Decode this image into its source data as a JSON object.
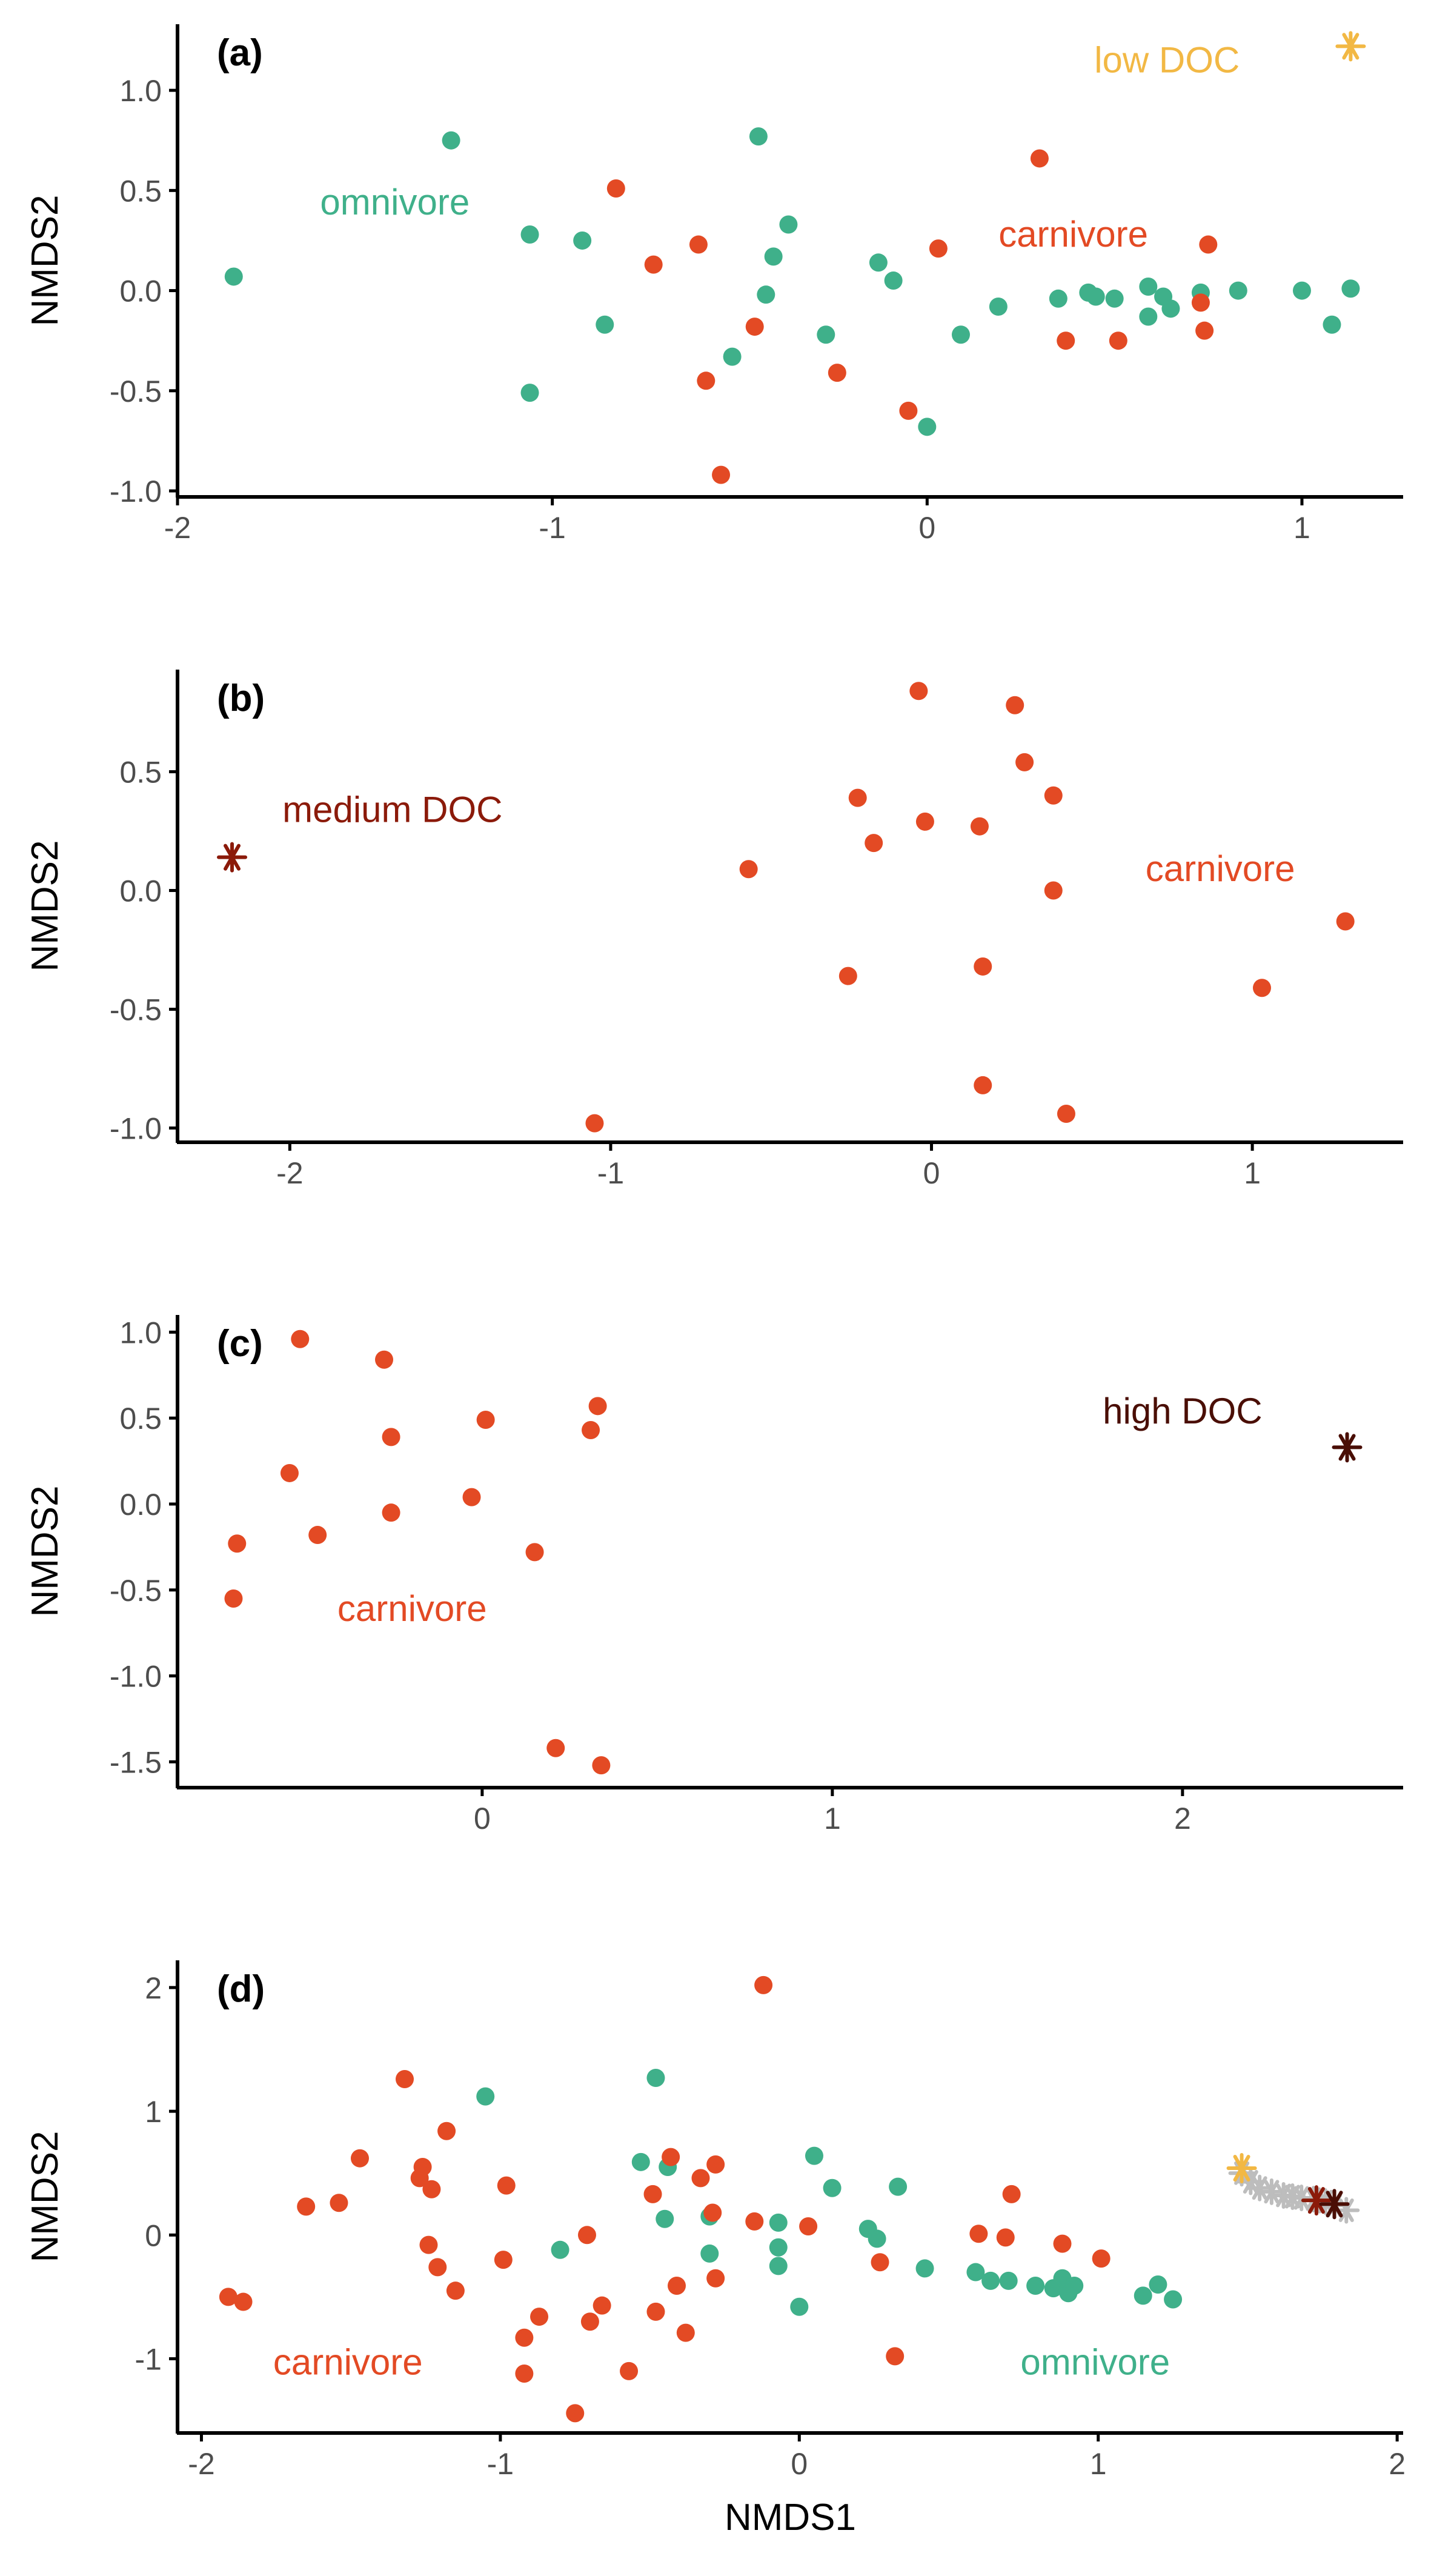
{
  "colors": {
    "carnivore": "#E34A24",
    "omnivore": "#3FB08A",
    "low_doc": "#F2B844",
    "medium_doc": "#8B1A0A",
    "high_doc": "#4A0E05",
    "trail": "#BDBDBD",
    "axis": "#000000",
    "tick_label": "#4d4d4d"
  },
  "chart_data": [
    {
      "type": "scatter",
      "panel_label": "(a)",
      "xlabel": "",
      "ylabel": "NMDS2",
      "xlim": [
        -2.0,
        1.27
      ],
      "ylim": [
        -1.03,
        1.33
      ],
      "xticks": [
        -2,
        -1,
        0,
        1
      ],
      "xtick_labels": [
        "-2",
        "-1",
        "0",
        "1"
      ],
      "yticks": [
        -1.0,
        -0.5,
        0.0,
        0.5,
        1.0
      ],
      "ytick_labels": [
        "-1.0",
        "-0.5",
        "0.0",
        "0.5",
        "1.0"
      ],
      "grid": false,
      "annotations": [
        {
          "text": "omnivore",
          "x": -1.42,
          "y": 0.44,
          "color": "omnivore"
        },
        {
          "text": "carnivore",
          "x": 0.39,
          "y": 0.28,
          "color": "carnivore"
        },
        {
          "text": "low DOC",
          "x": 0.64,
          "y": 1.15,
          "color": "low_doc"
        }
      ],
      "series": [
        {
          "group": "omnivore",
          "marker": "circle",
          "x": [
            -1.85,
            -1.27,
            -1.06,
            -0.92,
            -0.86,
            -1.06,
            -0.45,
            -0.37,
            -0.41,
            -0.43,
            -0.52,
            -0.27,
            -0.13,
            -0.09,
            0.0,
            0.09,
            0.19,
            0.35,
            0.43,
            0.45,
            0.5,
            0.59,
            0.63,
            0.65,
            0.59,
            0.73,
            0.83,
            1.0,
            1.13,
            1.08
          ],
          "y": [
            0.07,
            0.75,
            0.28,
            0.25,
            -0.17,
            -0.51,
            0.77,
            0.33,
            0.17,
            -0.02,
            -0.33,
            -0.22,
            0.14,
            0.05,
            -0.68,
            -0.22,
            -0.08,
            -0.04,
            -0.01,
            -0.03,
            -0.04,
            0.02,
            -0.03,
            -0.09,
            -0.13,
            -0.01,
            0.0,
            0.0,
            0.01,
            -0.17
          ]
        },
        {
          "group": "carnivore",
          "marker": "circle",
          "x": [
            -0.83,
            -0.73,
            -0.61,
            -0.59,
            -0.46,
            -0.55,
            -0.24,
            -0.05,
            0.03,
            0.3,
            0.37,
            0.51,
            0.75,
            0.73,
            0.74
          ],
          "y": [
            0.51,
            0.13,
            0.23,
            -0.45,
            -0.18,
            -0.92,
            -0.41,
            -0.6,
            0.21,
            0.66,
            -0.25,
            -0.25,
            0.23,
            -0.06,
            -0.2
          ]
        },
        {
          "group": "low_doc",
          "marker": "asterisk",
          "x": [
            1.13
          ],
          "y": [
            1.22
          ]
        }
      ]
    },
    {
      "type": "scatter",
      "panel_label": "(b)",
      "xlabel": "",
      "ylabel": "NMDS2",
      "xlim": [
        -2.35,
        1.47
      ],
      "ylim": [
        -1.06,
        0.93
      ],
      "xticks": [
        -2,
        -1,
        0,
        1
      ],
      "xtick_labels": [
        "-2",
        "-1",
        "0",
        "1"
      ],
      "yticks": [
        -1.0,
        -0.5,
        0.0,
        0.5
      ],
      "ytick_labels": [
        "-1.0",
        "-0.5",
        "0.0",
        "0.5"
      ],
      "grid": false,
      "annotations": [
        {
          "text": "medium DOC",
          "x": -1.68,
          "y": 0.34,
          "color": "medium_doc"
        },
        {
          "text": "carnivore",
          "x": 0.9,
          "y": 0.09,
          "color": "carnivore"
        }
      ],
      "series": [
        {
          "group": "carnivore",
          "marker": "circle",
          "x": [
            -1.05,
            -0.57,
            -0.23,
            -0.18,
            -0.04,
            -0.02,
            0.15,
            0.26,
            0.29,
            0.38,
            0.38,
            0.16,
            -0.26,
            0.16,
            0.42,
            1.03,
            1.29
          ],
          "y": [
            -0.98,
            0.09,
            0.39,
            0.2,
            0.84,
            0.29,
            0.27,
            0.78,
            0.54,
            0.4,
            0.0,
            -0.32,
            -0.36,
            -0.82,
            -0.94,
            -0.41,
            -0.13
          ]
        },
        {
          "group": "medium_doc",
          "marker": "asterisk",
          "x": [
            -2.18
          ],
          "y": [
            0.14
          ]
        }
      ]
    },
    {
      "type": "scatter",
      "panel_label": "(c)",
      "xlabel": "",
      "ylabel": "NMDS2",
      "xlim": [
        -0.87,
        2.63
      ],
      "ylim": [
        -1.65,
        1.1
      ],
      "xticks": [
        0,
        1,
        2
      ],
      "xtick_labels": [
        "0",
        "1",
        "2"
      ],
      "yticks": [
        -1.5,
        -1.0,
        -0.5,
        0.0,
        0.5,
        1.0
      ],
      "ytick_labels": [
        "-1.5",
        "-1.0",
        "-0.5",
        "0.0",
        "0.5",
        "1.0"
      ],
      "grid": false,
      "annotations": [
        {
          "text": "carnivore",
          "x": -0.2,
          "y": -0.61,
          "color": "carnivore"
        },
        {
          "text": "high DOC",
          "x": 2.0,
          "y": 0.54,
          "color": "high_doc"
        }
      ],
      "series": [
        {
          "group": "carnivore",
          "marker": "circle",
          "x": [
            -0.52,
            -0.28,
            -0.55,
            -0.26,
            -0.47,
            -0.7,
            -0.71,
            -0.26,
            0.01,
            -0.03,
            0.15,
            0.31,
            0.33,
            0.21,
            0.34
          ],
          "y": [
            0.96,
            0.84,
            0.18,
            0.39,
            -0.18,
            -0.23,
            -0.55,
            -0.05,
            0.49,
            0.04,
            -0.28,
            0.43,
            0.57,
            -1.42,
            -1.52
          ]
        },
        {
          "group": "high_doc",
          "marker": "asterisk",
          "x": [
            2.47
          ],
          "y": [
            0.33
          ]
        }
      ]
    },
    {
      "type": "scatter",
      "panel_label": "(d)",
      "xlabel": "NMDS1",
      "ylabel": "NMDS2",
      "xlim": [
        -2.08,
        2.02
      ],
      "ylim": [
        -1.6,
        2.22
      ],
      "xticks": [
        -2,
        -1,
        0,
        1,
        2
      ],
      "xtick_labels": [
        "-2",
        "-1",
        "0",
        "1",
        "2"
      ],
      "yticks": [
        -1,
        0,
        1,
        2
      ],
      "ytick_labels": [
        "-1",
        "0",
        "1",
        "2"
      ],
      "grid": false,
      "annotations": [
        {
          "text": "carnivore",
          "x": -1.51,
          "y": -1.03,
          "color": "carnivore"
        },
        {
          "text": "omnivore",
          "x": 0.99,
          "y": -1.03,
          "color": "omnivore"
        }
      ],
      "series": [
        {
          "group": "omnivore",
          "marker": "circle",
          "x": [
            -1.05,
            -0.8,
            -0.53,
            -0.48,
            -0.44,
            -0.45,
            -0.3,
            -0.3,
            -0.07,
            -0.07,
            -0.07,
            -0.0,
            0.05,
            0.11,
            0.23,
            0.26,
            0.33,
            0.42,
            0.59,
            0.64,
            0.7,
            0.79,
            0.85,
            0.88,
            0.9,
            0.92,
            1.15,
            1.2,
            1.25
          ],
          "y": [
            1.12,
            -0.12,
            0.59,
            1.27,
            0.55,
            0.13,
            0.15,
            -0.15,
            0.1,
            -0.1,
            -0.25,
            -0.58,
            0.64,
            0.38,
            0.05,
            -0.03,
            0.39,
            -0.27,
            -0.3,
            -0.37,
            -0.37,
            -0.41,
            -0.43,
            -0.35,
            -0.47,
            -0.41,
            -0.49,
            -0.4,
            -0.52
          ]
        },
        {
          "group": "carnivore",
          "marker": "circle",
          "x": [
            -1.91,
            -1.86,
            -1.65,
            -1.54,
            -1.47,
            -1.32,
            -1.27,
            -1.26,
            -1.23,
            -1.24,
            -1.21,
            -1.18,
            -1.15,
            -0.98,
            -0.99,
            -0.92,
            -0.92,
            -0.87,
            -0.75,
            -0.71,
            -0.7,
            -0.66,
            -0.57,
            -0.49,
            -0.48,
            -0.43,
            -0.41,
            -0.38,
            -0.33,
            -0.29,
            -0.28,
            -0.28,
            -0.15,
            -0.12,
            0.03,
            0.27,
            0.32,
            0.6,
            0.69,
            0.71,
            0.88,
            1.01
          ],
          "y": [
            -0.5,
            -0.54,
            0.23,
            0.26,
            0.62,
            1.26,
            0.46,
            0.55,
            0.37,
            -0.08,
            -0.26,
            0.84,
            -0.45,
            0.4,
            -0.2,
            -0.83,
            -1.12,
            -0.66,
            -1.44,
            0.0,
            -0.7,
            -0.57,
            -1.1,
            0.33,
            -0.62,
            0.63,
            -0.41,
            -0.79,
            0.46,
            0.18,
            -0.35,
            0.57,
            0.11,
            2.02,
            0.07,
            -0.22,
            -0.98,
            0.01,
            -0.02,
            0.33,
            -0.07,
            -0.19
          ]
        },
        {
          "group": "trail",
          "marker": "asterisk",
          "x": [
            1.48,
            1.51,
            1.54,
            1.58,
            1.62,
            1.65,
            1.68,
            1.72,
            1.76,
            1.79,
            1.83
          ],
          "y": [
            0.5,
            0.43,
            0.38,
            0.35,
            0.32,
            0.31,
            0.3,
            0.29,
            0.27,
            0.24,
            0.2
          ]
        },
        {
          "group": "low_doc",
          "marker": "asterisk",
          "x": [
            1.48
          ],
          "y": [
            0.54
          ]
        },
        {
          "group": "medium_doc",
          "marker": "asterisk",
          "x": [
            1.73
          ],
          "y": [
            0.28
          ]
        },
        {
          "group": "high_doc",
          "marker": "asterisk",
          "x": [
            1.79
          ],
          "y": [
            0.25
          ]
        }
      ]
    }
  ]
}
